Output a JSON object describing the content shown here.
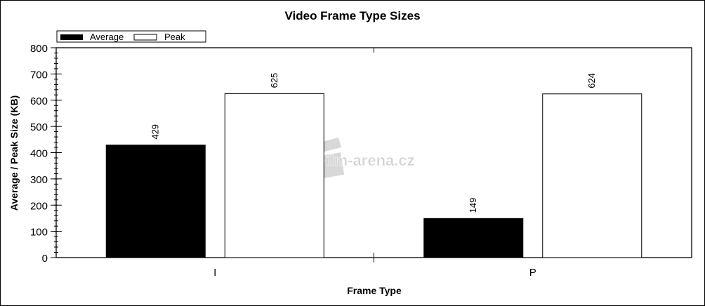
{
  "chart_data": {
    "type": "bar",
    "title": "Video Frame Type Sizes",
    "xlabel": "Frame Type",
    "ylabel": "Average / Peak Size (KB)",
    "categories": [
      "I",
      "P"
    ],
    "series": [
      {
        "name": "Average",
        "values": [
          429,
          149
        ],
        "color": "#000000"
      },
      {
        "name": "Peak",
        "values": [
          625,
          624
        ],
        "color": "#ffffff"
      }
    ],
    "data_labels": [
      [
        "429",
        "149"
      ],
      [
        "625",
        "624"
      ]
    ],
    "ylim": [
      0,
      800
    ],
    "yticks": [
      0,
      100,
      200,
      300,
      400,
      500,
      600,
      700,
      800
    ],
    "ytick_labels": [
      "0",
      "100",
      "200",
      "300",
      "400",
      "500",
      "600",
      "700",
      "800"
    ],
    "y_minor_step": 20,
    "grid": false,
    "legend_placement": "top-left"
  },
  "watermark": {
    "text": "Film-arena.cz",
    "icon": "clapperboard-icon"
  }
}
